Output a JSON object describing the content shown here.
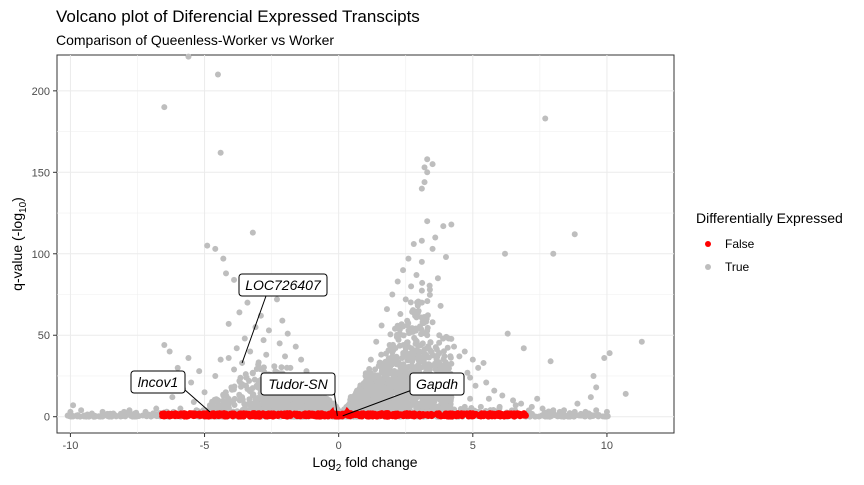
{
  "chart_data": {
    "type": "scatter",
    "title": "Volcano plot of Diferencial Expressed Transcipts",
    "subtitle": "Comparison of Queenless-Worker vs Worker",
    "xlabel_prefix": "Log",
    "xlabel_sub": "2",
    "xlabel_suffix": " fold change",
    "ylabel_prefix": "q-value (-log",
    "ylabel_sub": "10",
    "ylabel_suffix": ")",
    "xlim": [
      -10.5,
      12.5
    ],
    "ylim": [
      -10,
      222
    ],
    "xticks": [
      -10,
      -5,
      0,
      5,
      10
    ],
    "xtick_labels": [
      "-10",
      "-5",
      "0",
      "5",
      "10"
    ],
    "yticks": [
      0,
      50,
      100,
      150,
      200
    ],
    "ytick_labels": [
      "0",
      "50",
      "100",
      "150",
      "200"
    ],
    "grid": true,
    "legend": {
      "title": "Differentially Expressed",
      "position": "right",
      "entries": [
        {
          "label": "False",
          "color": "#ff0000"
        },
        {
          "label": "True",
          "color": "#bebebe"
        }
      ]
    },
    "series": [
      {
        "name": "True",
        "color": "#bebebe",
        "points": [
          [
            -5.6,
            221
          ],
          [
            -4.5,
            210
          ],
          [
            -6.5,
            190
          ],
          [
            -4.4,
            162
          ],
          [
            -3.2,
            113
          ],
          [
            -4.9,
            105
          ],
          [
            -4.6,
            103
          ],
          [
            -4.3,
            97
          ],
          [
            -4.2,
            88
          ],
          [
            -3.9,
            84
          ],
          [
            -3.0,
            79
          ],
          [
            -2.5,
            76
          ],
          [
            -2.3,
            72
          ],
          [
            -3.4,
            70
          ],
          [
            -3.7,
            64
          ],
          [
            -2.9,
            62
          ],
          [
            -2.1,
            59
          ],
          [
            -4.1,
            57
          ],
          [
            -3.1,
            55
          ],
          [
            -2.6,
            53
          ],
          [
            -1.9,
            51
          ],
          [
            -3.5,
            48
          ],
          [
            -2.8,
            47
          ],
          [
            -2.2,
            45
          ],
          [
            -1.6,
            43
          ],
          [
            -3.8,
            42
          ],
          [
            -3.3,
            40
          ],
          [
            -2.7,
            38
          ],
          [
            -2.0,
            37
          ],
          [
            -1.4,
            35
          ],
          [
            -4.4,
            35
          ],
          [
            -4.1,
            36
          ],
          [
            -3.6,
            33
          ],
          [
            -3.0,
            32
          ],
          [
            -2.4,
            31
          ],
          [
            -1.8,
            30
          ],
          [
            -1.2,
            28
          ],
          [
            -3.9,
            29
          ],
          [
            -3.2,
            27
          ],
          [
            -2.6,
            26
          ],
          [
            -2.0,
            25
          ],
          [
            -1.5,
            24
          ],
          [
            -1.0,
            22
          ],
          [
            -4.6,
            25
          ],
          [
            -3.7,
            22
          ],
          [
            -2.9,
            21
          ],
          [
            -2.3,
            20
          ],
          [
            -1.7,
            19
          ],
          [
            -1.2,
            18
          ],
          [
            -0.8,
            16
          ],
          [
            -4.0,
            18
          ],
          [
            -3.4,
            17
          ],
          [
            -2.7,
            16
          ],
          [
            -2.1,
            15
          ],
          [
            -1.5,
            14
          ],
          [
            -1.0,
            13
          ],
          [
            -0.6,
            11
          ],
          [
            -5.0,
            15
          ],
          [
            -4.3,
            13
          ],
          [
            -3.6,
            12
          ],
          [
            -2.9,
            11
          ],
          [
            -2.2,
            10
          ],
          [
            -1.6,
            9
          ],
          [
            -1.1,
            8
          ],
          [
            -0.7,
            7
          ],
          [
            -0.4,
            5
          ],
          [
            -6.5,
            44
          ],
          [
            -6.3,
            40
          ],
          [
            -5.6,
            36
          ],
          [
            -6.0,
            30
          ],
          [
            -5.2,
            28
          ],
          [
            -5.5,
            21
          ],
          [
            -5.8,
            17
          ],
          [
            -6.2,
            12
          ],
          [
            -5.4,
            9
          ],
          [
            -4.8,
            7
          ],
          [
            -4.2,
            6
          ],
          [
            -3.5,
            5
          ],
          [
            -2.8,
            5
          ],
          [
            -2.2,
            4
          ],
          [
            -1.6,
            4
          ],
          [
            -1.0,
            3
          ],
          [
            -0.5,
            2
          ],
          [
            -6.8,
            5
          ],
          [
            -7.2,
            3
          ],
          [
            -7.6,
            2
          ],
          [
            -8.0,
            3
          ],
          [
            -8.4,
            2
          ],
          [
            -8.8,
            3
          ],
          [
            -9.2,
            2
          ],
          [
            -9.6,
            4
          ],
          [
            -10.0,
            3
          ],
          [
            -9.9,
            7
          ],
          [
            -7.8,
            4
          ],
          [
            -6.9,
            2
          ],
          [
            -5.9,
            5
          ],
          [
            -5.3,
            4
          ],
          [
            -4.7,
            4
          ],
          [
            -4.0,
            3
          ],
          [
            -3.3,
            3
          ],
          [
            3.3,
            158
          ],
          [
            3.5,
            155
          ],
          [
            3.2,
            153
          ],
          [
            3.3,
            150
          ],
          [
            3.2,
            144
          ],
          [
            3.1,
            140
          ],
          [
            4.2,
            118
          ],
          [
            3.3,
            120
          ],
          [
            3.9,
            117
          ],
          [
            3.6,
            110
          ],
          [
            3.1,
            108
          ],
          [
            2.8,
            106
          ],
          [
            3.5,
            103
          ],
          [
            4.0,
            98
          ],
          [
            2.6,
            97
          ],
          [
            3.1,
            95
          ],
          [
            2.4,
            90
          ],
          [
            2.9,
            87
          ],
          [
            3.7,
            85
          ],
          [
            2.2,
            83
          ],
          [
            2.7,
            80
          ],
          [
            3.4,
            78
          ],
          [
            2.0,
            75
          ],
          [
            2.5,
            72
          ],
          [
            3.1,
            70
          ],
          [
            3.8,
            68
          ],
          [
            1.8,
            66
          ],
          [
            2.3,
            63
          ],
          [
            2.9,
            61
          ],
          [
            3.5,
            58
          ],
          [
            1.6,
            56
          ],
          [
            2.1,
            54
          ],
          [
            2.7,
            52
          ],
          [
            3.3,
            50
          ],
          [
            4.1,
            48
          ],
          [
            1.4,
            46
          ],
          [
            1.9,
            44
          ],
          [
            2.5,
            42
          ],
          [
            3.0,
            40
          ],
          [
            3.7,
            38
          ],
          [
            4.5,
            37
          ],
          [
            1.2,
            35
          ],
          [
            1.7,
            33
          ],
          [
            2.3,
            32
          ],
          [
            2.8,
            30
          ],
          [
            3.4,
            29
          ],
          [
            4.0,
            28
          ],
          [
            4.8,
            27
          ],
          [
            1.0,
            25
          ],
          [
            1.5,
            24
          ],
          [
            2.0,
            23
          ],
          [
            2.6,
            22
          ],
          [
            3.1,
            21
          ],
          [
            3.8,
            20
          ],
          [
            4.4,
            19
          ],
          [
            5.1,
            19
          ],
          [
            0.8,
            17
          ],
          [
            1.3,
            16
          ],
          [
            1.8,
            15
          ],
          [
            2.4,
            14
          ],
          [
            2.9,
            13
          ],
          [
            3.5,
            13
          ],
          [
            4.2,
            12
          ],
          [
            4.9,
            11
          ],
          [
            5.6,
            11
          ],
          [
            0.6,
            10
          ],
          [
            1.1,
            9
          ],
          [
            1.6,
            9
          ],
          [
            2.2,
            8
          ],
          [
            2.8,
            8
          ],
          [
            3.4,
            7
          ],
          [
            4.0,
            7
          ],
          [
            4.7,
            6
          ],
          [
            5.3,
            6
          ],
          [
            6.0,
            6
          ],
          [
            0.4,
            5
          ],
          [
            0.9,
            4
          ],
          [
            1.5,
            4
          ],
          [
            2.1,
            4
          ],
          [
            2.7,
            3
          ],
          [
            3.3,
            3
          ],
          [
            4.0,
            3
          ],
          [
            4.6,
            3
          ],
          [
            5.2,
            3
          ],
          [
            5.9,
            3
          ],
          [
            6.5,
            2
          ],
          [
            4.3,
            43
          ],
          [
            4.7,
            40
          ],
          [
            5.0,
            35
          ],
          [
            5.4,
            33
          ],
          [
            4.1,
            32
          ],
          [
            5.2,
            30
          ],
          [
            4.9,
            24
          ],
          [
            5.5,
            21
          ],
          [
            5.8,
            16
          ],
          [
            6.1,
            13
          ],
          [
            6.5,
            10
          ],
          [
            6.8,
            8
          ],
          [
            7.2,
            6
          ],
          [
            7.6,
            5
          ],
          [
            8.0,
            4
          ],
          [
            8.4,
            4
          ],
          [
            8.8,
            3
          ],
          [
            9.2,
            3
          ],
          [
            9.6,
            4
          ],
          [
            10.0,
            3
          ],
          [
            7.7,
            183
          ],
          [
            8.8,
            112
          ],
          [
            8.0,
            100
          ],
          [
            6.2,
            100
          ],
          [
            6.3,
            51
          ],
          [
            6.9,
            42
          ],
          [
            7.9,
            34
          ],
          [
            9.5,
            25
          ],
          [
            9.6,
            18
          ],
          [
            10.7,
            14
          ],
          [
            9.9,
            36
          ],
          [
            10.1,
            39
          ],
          [
            11.3,
            46
          ],
          [
            8.9,
            8
          ],
          [
            9.4,
            12
          ],
          [
            7.4,
            11
          ],
          [
            6.6,
            7
          ]
        ]
      },
      {
        "name": "False",
        "color": "#ff0000",
        "x_range": [
          -6.6,
          7.0
        ],
        "y_range": [
          0,
          2.2
        ]
      }
    ],
    "annotations": [
      {
        "label": "LOC726407",
        "x": -3.6,
        "y": 33
      },
      {
        "label": "lncov1",
        "x": -4.8,
        "y": 3
      },
      {
        "label": "Tudor-SN",
        "x": -0.05,
        "y": 0.5
      },
      {
        "label": "Gapdh",
        "x": 0.15,
        "y": 0.5
      }
    ]
  }
}
